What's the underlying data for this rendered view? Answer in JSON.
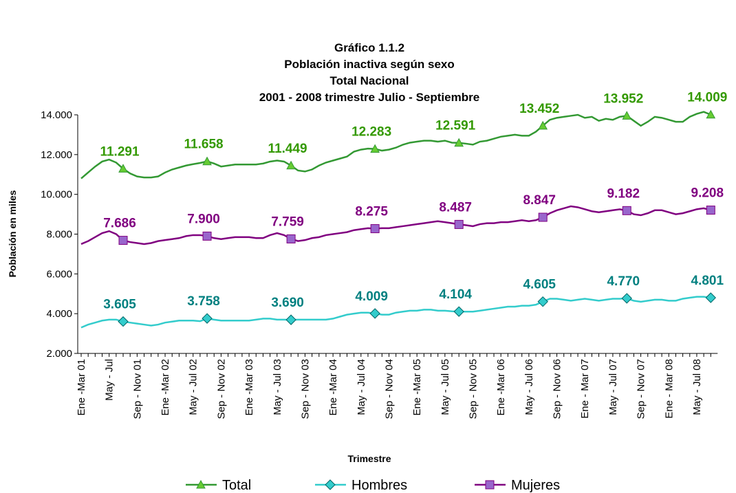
{
  "chart_data": {
    "type": "line",
    "title": [
      "Gráfico 1.1.2",
      "Población inactiva según sexo",
      "Total Nacional",
      "2001 - 2008 trimestre Julio - Septiembre"
    ],
    "y_label": "Población en miles",
    "x_label": "Trimestre",
    "categories": [
      "Ene -Mar 01",
      null,
      null,
      null,
      "May - Jul",
      null,
      null,
      null,
      "Sep - Nov 01",
      null,
      null,
      null,
      "Ene -Mar 02",
      null,
      null,
      null,
      "May - Jul 02",
      null,
      null,
      null,
      "Sep - Nov 02",
      null,
      null,
      null,
      "Ene -Mar 03",
      null,
      null,
      null,
      "May - Jul 03",
      null,
      null,
      null,
      "Sep - Nov 03",
      null,
      null,
      null,
      "Ene -Mar 04",
      null,
      null,
      null,
      "May - Jul 04",
      null,
      null,
      null,
      "Sep - Nov 04",
      null,
      null,
      null,
      "Ene -Mar 05",
      null,
      null,
      null,
      "May - Jul 05",
      null,
      null,
      null,
      "Sep - Nov 05",
      null,
      null,
      null,
      "Ene -Mar 06",
      null,
      null,
      null,
      "May - Jul 06",
      null,
      null,
      null,
      "Sep - Nov 06",
      null,
      null,
      null,
      "Ene - Mar 07",
      null,
      null,
      null,
      "May - Jul 07",
      null,
      null,
      null,
      "Sep - Nov 07",
      null,
      null,
      null,
      "Ene - Mar 08",
      null,
      null,
      null,
      "May - Jul 08",
      null,
      null
    ],
    "ylim": [
      2000,
      14000
    ],
    "yticks": [
      {
        "value": 2000,
        "label": "2.000"
      },
      {
        "value": 4000,
        "label": "4.000"
      },
      {
        "value": 6000,
        "label": "6.000"
      },
      {
        "value": 8000,
        "label": "8.000"
      },
      {
        "value": 10000,
        "label": "10.000"
      },
      {
        "value": 12000,
        "label": "12.000"
      },
      {
        "value": 14000,
        "label": "14.000"
      }
    ],
    "legend": "bottom",
    "series": [
      {
        "name": "Total",
        "color": "#339933",
        "marker": "triangle",
        "marker_color": "#66cc33",
        "label_color": "#339900",
        "values": [
          10800,
          11100,
          11400,
          11650,
          11750,
          11600,
          11291,
          11050,
          10900,
          10850,
          10850,
          10900,
          11100,
          11250,
          11350,
          11450,
          11520,
          11580,
          11658,
          11550,
          11400,
          11450,
          11500,
          11500,
          11500,
          11500,
          11550,
          11650,
          11700,
          11650,
          11449,
          11200,
          11150,
          11250,
          11450,
          11600,
          11700,
          11800,
          11900,
          12150,
          12250,
          12300,
          12283,
          12200,
          12250,
          12350,
          12500,
          12600,
          12650,
          12700,
          12700,
          12650,
          12700,
          12600,
          12591,
          12550,
          12500,
          12650,
          12700,
          12800,
          12900,
          12950,
          13000,
          12950,
          12950,
          13150,
          13452,
          13750,
          13850,
          13900,
          13950,
          14000,
          13850,
          13900,
          13700,
          13800,
          13750,
          13900,
          13952,
          13700,
          13450,
          13650,
          13900,
          13850,
          13750,
          13650,
          13650,
          13900,
          14050,
          14150,
          14009
        ],
        "value_labels": [
          null,
          null,
          null,
          null,
          null,
          null,
          "11.291",
          null,
          null,
          null,
          null,
          null,
          null,
          null,
          null,
          null,
          null,
          null,
          "11.658",
          null,
          null,
          null,
          null,
          null,
          null,
          null,
          null,
          null,
          null,
          null,
          "11.449",
          null,
          null,
          null,
          null,
          null,
          null,
          null,
          null,
          null,
          null,
          null,
          "12.283",
          null,
          null,
          null,
          null,
          null,
          null,
          null,
          null,
          null,
          null,
          null,
          "12.591",
          null,
          null,
          null,
          null,
          null,
          null,
          null,
          null,
          null,
          null,
          null,
          "13.452",
          null,
          null,
          null,
          null,
          null,
          null,
          null,
          null,
          null,
          null,
          null,
          "13.952",
          null,
          null,
          null,
          null,
          null,
          null,
          null,
          null,
          null,
          null,
          null,
          "14.009"
        ]
      },
      {
        "name": "Hombres",
        "color": "#33cccc",
        "marker": "diamond",
        "marker_color": "#33cccc",
        "label_color": "#008080",
        "values": [
          3300,
          3450,
          3550,
          3650,
          3700,
          3700,
          3605,
          3550,
          3500,
          3450,
          3400,
          3450,
          3550,
          3600,
          3650,
          3650,
          3650,
          3620,
          3758,
          3700,
          3650,
          3650,
          3650,
          3650,
          3650,
          3700,
          3750,
          3750,
          3700,
          3700,
          3690,
          3700,
          3700,
          3700,
          3700,
          3700,
          3750,
          3850,
          3950,
          4000,
          4050,
          4050,
          4009,
          3950,
          3950,
          4050,
          4100,
          4150,
          4150,
          4200,
          4200,
          4150,
          4150,
          4120,
          4104,
          4100,
          4100,
          4150,
          4200,
          4250,
          4300,
          4350,
          4350,
          4400,
          4400,
          4450,
          4605,
          4750,
          4750,
          4700,
          4650,
          4700,
          4750,
          4700,
          4650,
          4700,
          4750,
          4750,
          4770,
          4650,
          4600,
          4650,
          4700,
          4700,
          4650,
          4650,
          4750,
          4800,
          4850,
          4850,
          4801
        ],
        "value_labels": [
          null,
          null,
          null,
          null,
          null,
          null,
          "3.605",
          null,
          null,
          null,
          null,
          null,
          null,
          null,
          null,
          null,
          null,
          null,
          "3.758",
          null,
          null,
          null,
          null,
          null,
          null,
          null,
          null,
          null,
          null,
          null,
          "3.690",
          null,
          null,
          null,
          null,
          null,
          null,
          null,
          null,
          null,
          null,
          null,
          "4.009",
          null,
          null,
          null,
          null,
          null,
          null,
          null,
          null,
          null,
          null,
          null,
          "4.104",
          null,
          null,
          null,
          null,
          null,
          null,
          null,
          null,
          null,
          null,
          null,
          "4.605",
          null,
          null,
          null,
          null,
          null,
          null,
          null,
          null,
          null,
          null,
          null,
          "4.770",
          null,
          null,
          null,
          null,
          null,
          null,
          null,
          null,
          null,
          null,
          null,
          "4.801"
        ]
      },
      {
        "name": "Mujeres",
        "color": "#800080",
        "marker": "square",
        "marker_color": "#9966cc",
        "label_color": "#800080",
        "values": [
          7500,
          7650,
          7850,
          8050,
          8150,
          8000,
          7686,
          7600,
          7550,
          7500,
          7550,
          7650,
          7700,
          7750,
          7800,
          7900,
          7950,
          7950,
          7900,
          7800,
          7750,
          7800,
          7850,
          7850,
          7850,
          7800,
          7800,
          7950,
          8050,
          7950,
          7759,
          7650,
          7700,
          7800,
          7850,
          7950,
          8000,
          8050,
          8100,
          8200,
          8250,
          8300,
          8275,
          8300,
          8300,
          8350,
          8400,
          8450,
          8500,
          8550,
          8600,
          8650,
          8600,
          8550,
          8487,
          8450,
          8400,
          8500,
          8550,
          8550,
          8600,
          8600,
          8650,
          8700,
          8650,
          8700,
          8847,
          9050,
          9200,
          9300,
          9400,
          9350,
          9250,
          9150,
          9100,
          9150,
          9200,
          9250,
          9182,
          9000,
          8950,
          9050,
          9200,
          9200,
          9100,
          9000,
          9050,
          9150,
          9250,
          9300,
          9208
        ],
        "value_labels": [
          null,
          null,
          null,
          null,
          null,
          null,
          "7.686",
          null,
          null,
          null,
          null,
          null,
          null,
          null,
          null,
          null,
          null,
          null,
          "7.900",
          null,
          null,
          null,
          null,
          null,
          null,
          null,
          null,
          null,
          null,
          null,
          "7.759",
          null,
          null,
          null,
          null,
          null,
          null,
          null,
          null,
          null,
          null,
          null,
          "8.275",
          null,
          null,
          null,
          null,
          null,
          null,
          null,
          null,
          null,
          null,
          null,
          "8.487",
          null,
          null,
          null,
          null,
          null,
          null,
          null,
          null,
          null,
          null,
          null,
          "8.847",
          null,
          null,
          null,
          null,
          null,
          null,
          null,
          null,
          null,
          null,
          null,
          "9.182",
          null,
          null,
          null,
          null,
          null,
          null,
          null,
          null,
          null,
          null,
          null,
          "9.208"
        ]
      }
    ]
  }
}
